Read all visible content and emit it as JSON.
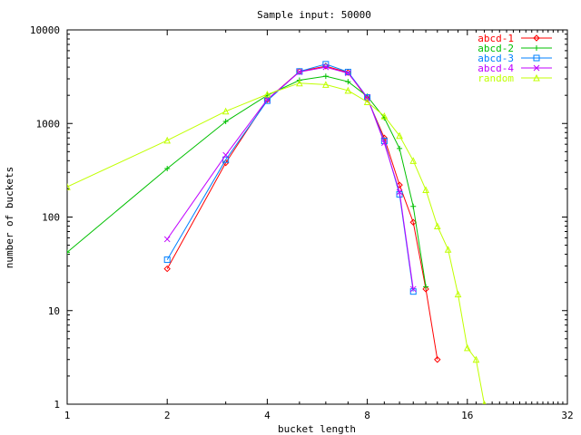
{
  "chart_data": {
    "type": "line",
    "title": "Sample input: 50000",
    "xlabel": "bucket length",
    "ylabel": "number of buckets",
    "x_scale": "log2",
    "y_scale": "log10",
    "xlim": [
      1,
      32
    ],
    "ylim": [
      1,
      10000
    ],
    "x_ticks": [
      1,
      2,
      4,
      8,
      16,
      32
    ],
    "x_tick_labels": [
      "1",
      "2",
      "4",
      "8",
      "16",
      "32"
    ],
    "y_ticks": [
      1,
      10,
      100,
      1000,
      10000
    ],
    "y_tick_labels": [
      "1",
      "10",
      "100",
      "1000",
      "10000"
    ],
    "grid": false,
    "legend_position": "top-right",
    "series": [
      {
        "name": "abcd-1",
        "color": "#ff0000",
        "marker": "diamond",
        "points": [
          [
            2,
            28
          ],
          [
            3,
            380
          ],
          [
            4,
            1800
          ],
          [
            5,
            3600
          ],
          [
            6,
            4100
          ],
          [
            7,
            3500
          ],
          [
            8,
            1850
          ],
          [
            9,
            700
          ],
          [
            10,
            220
          ],
          [
            11,
            88
          ],
          [
            12,
            17
          ],
          [
            13,
            3
          ]
        ]
      },
      {
        "name": "abcd-2",
        "color": "#00c000",
        "marker": "plus",
        "points": [
          [
            1,
            42
          ],
          [
            2,
            330
          ],
          [
            3,
            1050
          ],
          [
            4,
            2000
          ],
          [
            5,
            2900
          ],
          [
            6,
            3200
          ],
          [
            7,
            2800
          ],
          [
            8,
            1950
          ],
          [
            9,
            1150
          ],
          [
            10,
            540
          ],
          [
            11,
            130
          ],
          [
            12,
            18
          ]
        ]
      },
      {
        "name": "abcd-3",
        "color": "#0080ff",
        "marker": "square",
        "points": [
          [
            2,
            35
          ],
          [
            3,
            410
          ],
          [
            4,
            1750
          ],
          [
            5,
            3600
          ],
          [
            6,
            4300
          ],
          [
            7,
            3550
          ],
          [
            8,
            1900
          ],
          [
            9,
            650
          ],
          [
            10,
            175
          ],
          [
            11,
            16
          ]
        ]
      },
      {
        "name": "abcd-4",
        "color": "#c000ff",
        "marker": "cross",
        "points": [
          [
            2,
            58
          ],
          [
            3,
            460
          ],
          [
            4,
            1800
          ],
          [
            5,
            3550
          ],
          [
            6,
            4000
          ],
          [
            7,
            3450
          ],
          [
            8,
            1900
          ],
          [
            9,
            620
          ],
          [
            10,
            185
          ],
          [
            11,
            17
          ]
        ]
      },
      {
        "name": "random",
        "color": "#c0ff00",
        "marker": "triangle",
        "points": [
          [
            1,
            210
          ],
          [
            2,
            660
          ],
          [
            3,
            1350
          ],
          [
            4,
            2050
          ],
          [
            5,
            2700
          ],
          [
            6,
            2600
          ],
          [
            7,
            2250
          ],
          [
            8,
            1700
          ],
          [
            9,
            1200
          ],
          [
            10,
            740
          ],
          [
            11,
            400
          ],
          [
            12,
            195
          ],
          [
            13,
            80
          ],
          [
            14,
            45
          ],
          [
            15,
            15
          ],
          [
            16,
            4
          ],
          [
            17,
            3
          ],
          [
            18,
            1
          ]
        ]
      }
    ]
  }
}
